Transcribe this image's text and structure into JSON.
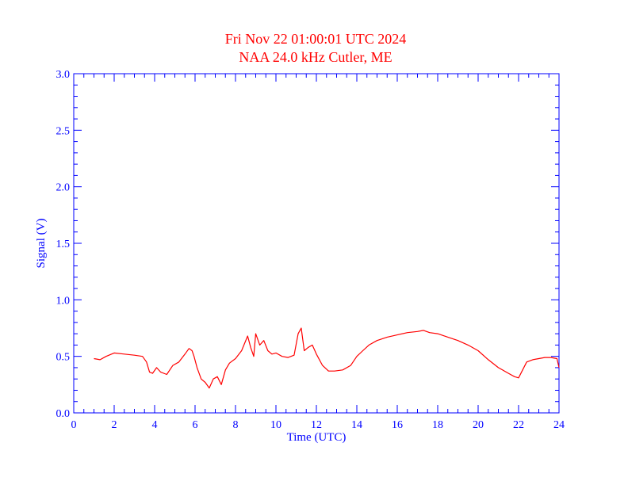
{
  "chart_data": {
    "type": "line",
    "title": "Fri Nov 22 01:00:01 UTC 2024",
    "subtitle": "NAA 24.0 kHz Cutler, ME",
    "xlabel": "Time (UTC)",
    "ylabel": "Signal (V)",
    "xlim": [
      0,
      24
    ],
    "ylim": [
      0,
      3.0
    ],
    "x_ticks": [
      "0",
      "2",
      "4",
      "6",
      "8",
      "10",
      "12",
      "14",
      "16",
      "18",
      "20",
      "22",
      "24"
    ],
    "y_ticks": [
      "0.0",
      "0.5",
      "1.0",
      "1.5",
      "2.0",
      "2.5",
      "3.0"
    ],
    "grid": false,
    "colors": {
      "title": "#ff0000",
      "axes": "#0000ff",
      "series": "#ff0000"
    },
    "series": [
      {
        "x": [
          1.0,
          1.3,
          1.6,
          2.0,
          2.5,
          3.0,
          3.4,
          3.6,
          3.75,
          3.9,
          4.1,
          4.3,
          4.6,
          4.9,
          5.2,
          5.5,
          5.7,
          5.85,
          5.95,
          6.1,
          6.3,
          6.5,
          6.7,
          6.9,
          7.1,
          7.3,
          7.5,
          7.7,
          8.0,
          8.3,
          8.6,
          8.75,
          8.9,
          9.0,
          9.2,
          9.4,
          9.6,
          9.8,
          10.0,
          10.3,
          10.6,
          10.9,
          11.1,
          11.25,
          11.4,
          11.6,
          11.8,
          12.0,
          12.3,
          12.6,
          12.9,
          13.3,
          13.7,
          14.0,
          14.3,
          14.6,
          15.0,
          15.5,
          16.0,
          16.5,
          17.0,
          17.3,
          17.6,
          18.0,
          18.5,
          19.0,
          19.5,
          20.0,
          20.5,
          21.0,
          21.5,
          21.8,
          22.0,
          22.2,
          22.4,
          22.7,
          23.0,
          23.3,
          23.6,
          23.9,
          24.0
        ],
        "y": [
          0.48,
          0.47,
          0.5,
          0.53,
          0.52,
          0.51,
          0.5,
          0.45,
          0.36,
          0.35,
          0.4,
          0.36,
          0.34,
          0.42,
          0.45,
          0.52,
          0.57,
          0.55,
          0.5,
          0.4,
          0.3,
          0.27,
          0.22,
          0.3,
          0.32,
          0.25,
          0.38,
          0.44,
          0.48,
          0.55,
          0.68,
          0.58,
          0.5,
          0.7,
          0.6,
          0.64,
          0.55,
          0.52,
          0.53,
          0.5,
          0.49,
          0.51,
          0.7,
          0.75,
          0.55,
          0.58,
          0.6,
          0.52,
          0.42,
          0.37,
          0.37,
          0.38,
          0.42,
          0.5,
          0.55,
          0.6,
          0.64,
          0.67,
          0.69,
          0.71,
          0.72,
          0.73,
          0.71,
          0.7,
          0.67,
          0.64,
          0.6,
          0.55,
          0.47,
          0.4,
          0.35,
          0.32,
          0.31,
          0.38,
          0.45,
          0.47,
          0.48,
          0.49,
          0.49,
          0.48,
          0.4
        ]
      }
    ]
  }
}
